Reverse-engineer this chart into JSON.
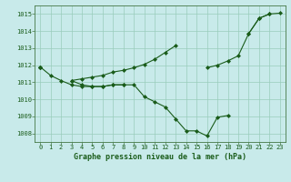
{
  "background_color": "#c8eaea",
  "grid_color": "#99ccbb",
  "line_color": "#1a5c1a",
  "marker_color": "#1a5c1a",
  "title": "Graphe pression niveau de la mer (hPa)",
  "hours": [
    0,
    1,
    2,
    3,
    4,
    5,
    6,
    7,
    8,
    9,
    10,
    11,
    12,
    13,
    14,
    15,
    16,
    17,
    18,
    19,
    20,
    21,
    22,
    23
  ],
  "ylim": [
    1007.5,
    1015.5
  ],
  "yticks": [
    1008,
    1009,
    1010,
    1011,
    1012,
    1013,
    1014,
    1015
  ],
  "series1": [
    1011.9,
    1011.4,
    1011.1,
    1010.85,
    1010.75,
    1010.75,
    1010.75,
    1010.85,
    1010.85,
    null,
    null,
    null,
    null,
    null,
    null,
    null,
    null,
    null,
    null,
    null,
    null,
    null,
    null,
    null
  ],
  "series2": [
    1011.9,
    null,
    null,
    1011.1,
    1010.85,
    1010.75,
    1010.75,
    1010.85,
    1010.85,
    1010.85,
    1010.15,
    1009.85,
    1009.55,
    1008.85,
    1008.15,
    1008.15,
    1007.85,
    1008.95,
    1009.05,
    null,
    null,
    null,
    null,
    null
  ],
  "series3": [
    1011.9,
    null,
    null,
    1011.1,
    1011.2,
    1011.3,
    1011.4,
    1011.6,
    1011.7,
    1011.85,
    1012.05,
    1012.35,
    1012.75,
    1013.15,
    null,
    null,
    1011.85,
    1012.0,
    1012.25,
    1012.55,
    1013.85,
    1014.75,
    1015.0,
    null
  ],
  "series4": [
    1011.9,
    null,
    null,
    null,
    null,
    null,
    null,
    null,
    null,
    null,
    null,
    null,
    null,
    null,
    null,
    null,
    null,
    null,
    null,
    null,
    1013.85,
    1014.75,
    1015.0,
    1015.05
  ],
  "tick_fontsize": 5,
  "label_fontsize": 6,
  "marker_size": 2.0,
  "line_width": 0.8
}
